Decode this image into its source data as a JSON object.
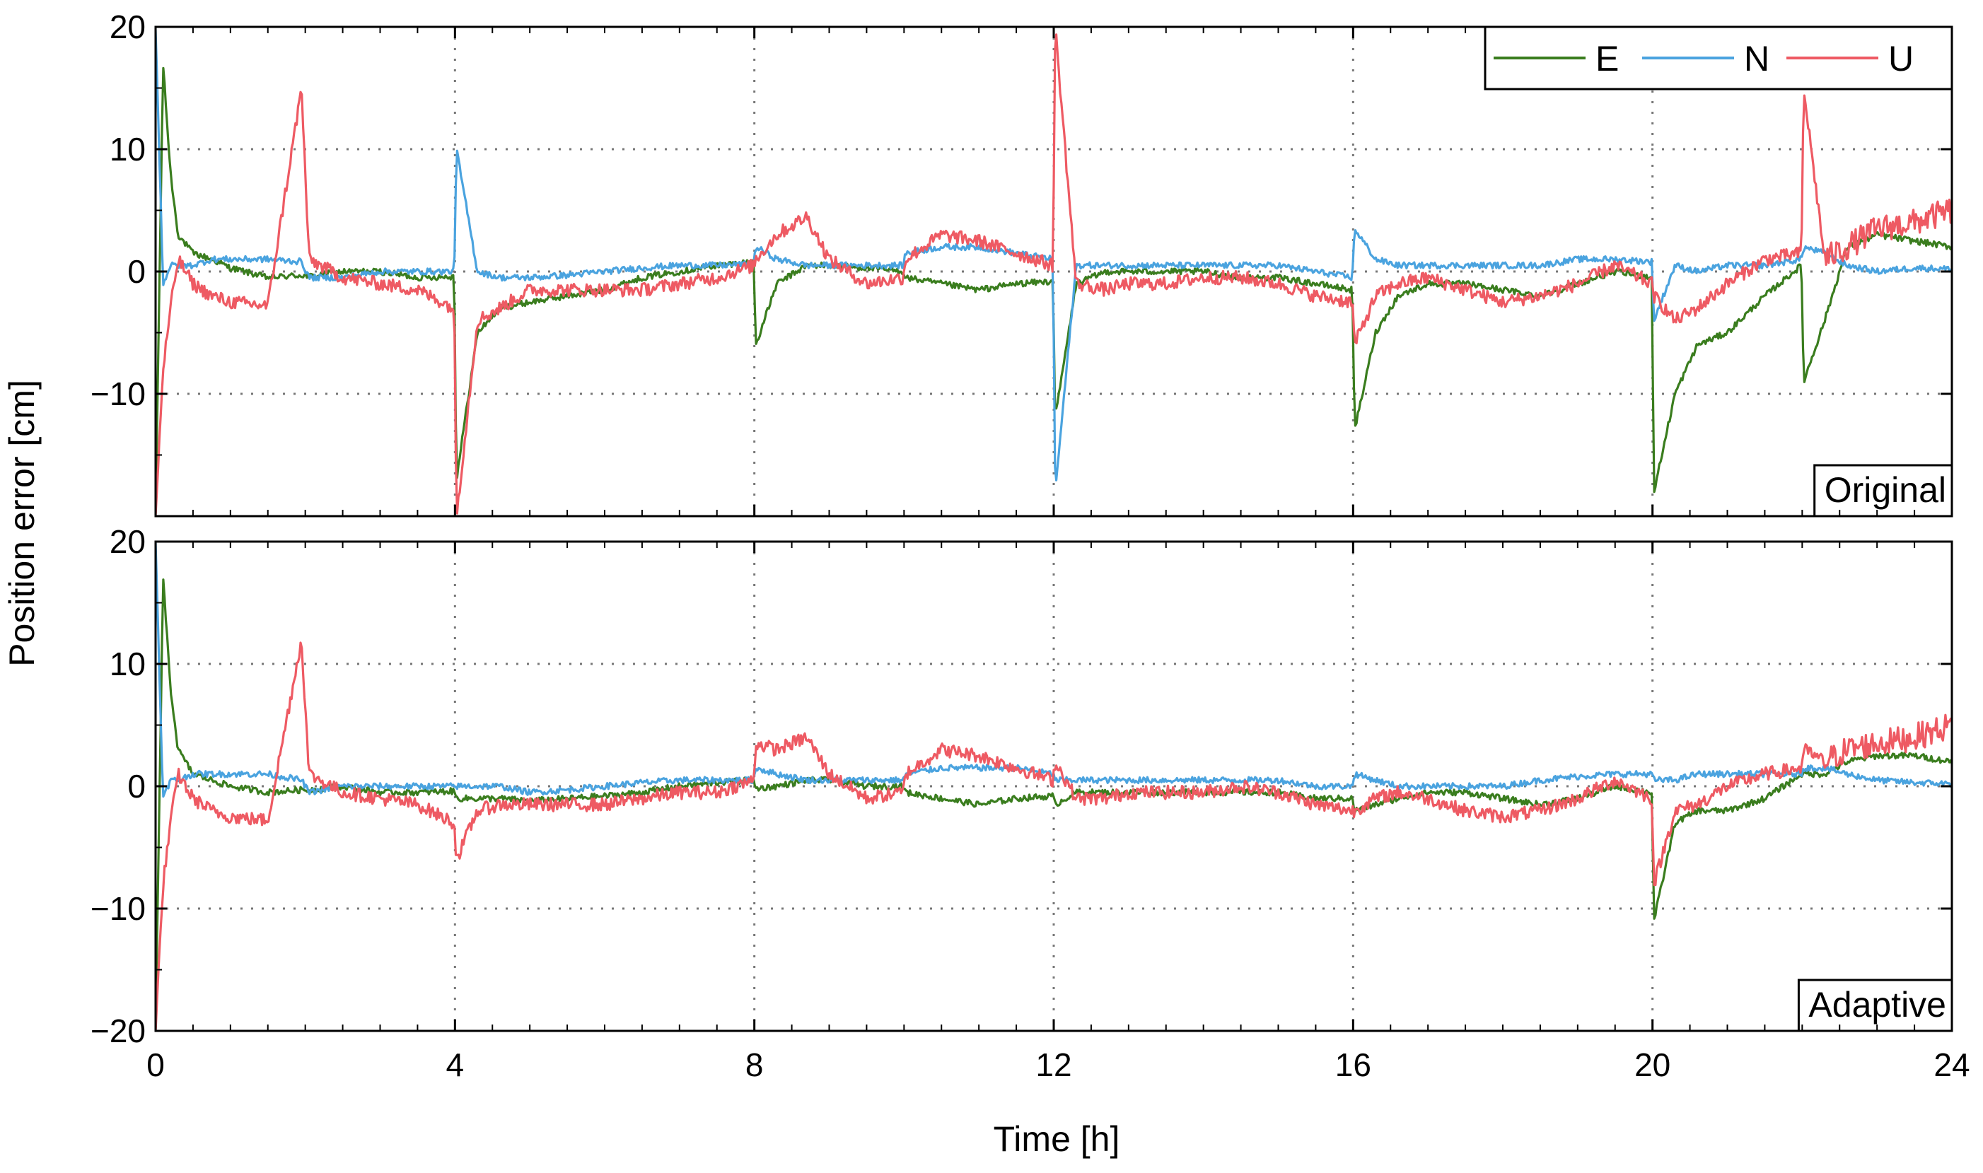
{
  "chart_data": {
    "type": "line",
    "xlabel": "Time [h]",
    "ylabel": "Position error [cm]",
    "xlim": [
      0,
      24
    ],
    "ylim": [
      -20,
      20
    ],
    "x_ticks": [
      "0",
      "4",
      "8",
      "12",
      "16",
      "20",
      "24"
    ],
    "y_ticks": [
      "20",
      "10",
      "0",
      "−10",
      "−20"
    ],
    "grid": "dotted at x = 4, 8, 12, 16, 20 h and y = −10, 0, 10 cm",
    "legend": {
      "placement": "top-right",
      "entries": [
        "E",
        "N",
        "U"
      ]
    },
    "colors": {
      "E": "#3a7d1e",
      "N": "#4aa3df",
      "U": "#ee5a63"
    },
    "x_sample_hours": [
      0,
      0.1,
      0.2,
      0.3,
      0.5,
      0.75,
      1,
      1.5,
      1.95,
      2.05,
      2.5,
      3,
      3.5,
      3.99,
      4.02,
      4.3,
      4.6,
      5,
      5.5,
      6,
      6.5,
      7,
      7.5,
      7.99,
      8.02,
      8.3,
      8.7,
      9,
      9.5,
      9.99,
      10.02,
      10.5,
      11,
      11.5,
      11.99,
      12.02,
      12.3,
      12.7,
      13,
      13.5,
      14,
      14.5,
      15,
      15.5,
      15.99,
      16.02,
      16.3,
      16.6,
      17,
      17.5,
      18,
      18.5,
      19,
      19.5,
      19.99,
      20.02,
      20.3,
      20.6,
      21,
      21.5,
      21.99,
      22.02,
      22.3,
      22.6,
      23,
      23.5,
      24
    ],
    "panels": [
      {
        "label": "Original",
        "series": [
          {
            "name": "E",
            "values": [
              -20,
              17,
              8,
              3,
              1.5,
              1,
              0.3,
              -0.5,
              -0.3,
              -0.4,
              0,
              0,
              -0.5,
              -0.4,
              -17,
              -5,
              -3,
              -2.5,
              -2,
              -1.5,
              -0.5,
              0,
              0.5,
              0.8,
              -6,
              -1,
              0.5,
              0.5,
              0.3,
              0,
              -0.5,
              -1,
              -1.5,
              -1,
              -0.8,
              -12,
              -1,
              0,
              0,
              0,
              0,
              -0.5,
              -0.5,
              -1,
              -1.5,
              -13,
              -5,
              -2,
              -1,
              -1,
              -1.5,
              -2,
              -1,
              0,
              -0.5,
              -18,
              -10,
              -6,
              -5,
              -2,
              0.5,
              -9,
              -4,
              2,
              3,
              2.5,
              2
            ]
          },
          {
            "name": "N",
            "values": [
              20,
              -1,
              0.5,
              0.5,
              0.5,
              1,
              1,
              1,
              0.8,
              -0.5,
              -0.5,
              0,
              0,
              0,
              10,
              0,
              -0.5,
              -0.5,
              -0.3,
              0,
              0.3,
              0.5,
              0.5,
              0.6,
              2,
              1,
              0.5,
              0.5,
              0.5,
              0.5,
              1.5,
              2,
              2,
              1.5,
              1,
              -18,
              0.5,
              0.5,
              0.5,
              0.5,
              0.5,
              0.5,
              0.5,
              0,
              -0.5,
              3.5,
              1,
              0.5,
              0.5,
              0.5,
              0.5,
              0.5,
              1,
              1,
              0.8,
              -4,
              0.5,
              0,
              0.5,
              0.5,
              1,
              2,
              1.5,
              0.5,
              0,
              0.3,
              0.2
            ]
          },
          {
            "name": "U",
            "values": [
              -20,
              -8,
              -3,
              1,
              -1,
              -2,
              -2.5,
              -2.8,
              15,
              1,
              -0.5,
              -1,
              -1.5,
              -3,
              -20,
              -4,
              -3,
              -1.5,
              -1.5,
              -1.5,
              -1.5,
              -1,
              -0.5,
              0.5,
              1,
              3,
              4.5,
              1,
              -1,
              -0.5,
              1,
              3,
              2.5,
              1.5,
              0.5,
              20,
              -1,
              -1.5,
              -1,
              -1,
              -0.5,
              -0.5,
              -1,
              -2,
              -2.5,
              -6,
              -2,
              -1,
              -0.5,
              -1.5,
              -2.5,
              -2,
              -1,
              0.5,
              -1,
              -2,
              -4,
              -3,
              -1,
              1,
              1.5,
              15,
              1,
              2,
              3.5,
              4,
              5
            ]
          }
        ]
      },
      {
        "label": "Adaptive",
        "series": [
          {
            "name": "E",
            "values": [
              -20,
              17,
              8,
              3,
              1,
              0.5,
              0,
              -0.5,
              -0.3,
              -0.3,
              0,
              -0.5,
              -0.5,
              -0.4,
              -1,
              -1,
              -1,
              -1.2,
              -1,
              -0.8,
              -0.5,
              0,
              0.3,
              0.5,
              -0.2,
              0,
              0.5,
              0.5,
              0,
              0,
              -0.5,
              -1,
              -1.5,
              -1,
              -0.8,
              -1.5,
              -0.5,
              -0.5,
              -0.5,
              -0.5,
              -0.5,
              -0.5,
              -0.5,
              -1,
              -1,
              -2,
              -1.5,
              -1,
              -0.5,
              -0.5,
              -1,
              -1.5,
              -1,
              0,
              -0.5,
              -11,
              -3,
              -2,
              -2,
              -1,
              1,
              1,
              1,
              2,
              2.5,
              2.5,
              2
            ]
          },
          {
            "name": "N",
            "values": [
              20,
              -1,
              0.5,
              0.5,
              1,
              1,
              1,
              1,
              0.5,
              -0.5,
              0,
              0,
              0,
              0,
              0,
              0,
              0,
              -0.5,
              -0.3,
              0,
              0.3,
              0.5,
              0.5,
              0.5,
              1.5,
              1,
              0.5,
              0.5,
              0.5,
              0.5,
              1,
              1.5,
              1.5,
              1.5,
              1,
              0.5,
              0.5,
              0.5,
              0.5,
              0.5,
              0.5,
              0.5,
              0.5,
              0,
              0,
              1,
              0.5,
              0,
              0,
              0,
              0,
              0.5,
              0.8,
              1,
              1,
              0.5,
              0.5,
              1,
              1,
              1,
              1,
              1.5,
              1.5,
              1,
              0.5,
              0.3,
              0.2
            ]
          },
          {
            "name": "U",
            "values": [
              -20,
              -8,
              -3,
              1,
              -1,
              -2,
              -2.5,
              -2.8,
              12,
              1,
              -0.5,
              -1,
              -1.5,
              -3,
              -6,
              -2,
              -1.5,
              -1.5,
              -1.5,
              -1.5,
              -1,
              -0.5,
              -0.5,
              0.5,
              3.5,
              3,
              4,
              1,
              -1,
              -0.5,
              1,
              3,
              2.5,
              1.5,
              0.5,
              2,
              -1,
              -1,
              -0.5,
              -0.5,
              -0.5,
              0,
              -0.5,
              -1.5,
              -2,
              -2,
              -1,
              -0.5,
              -1,
              -2,
              -2.5,
              -2,
              -1,
              0.5,
              -1,
              -8,
              -2,
              -1.5,
              0,
              1,
              1.5,
              3,
              2,
              3,
              3.5,
              4,
              5
            ]
          }
        ]
      }
    ]
  }
}
